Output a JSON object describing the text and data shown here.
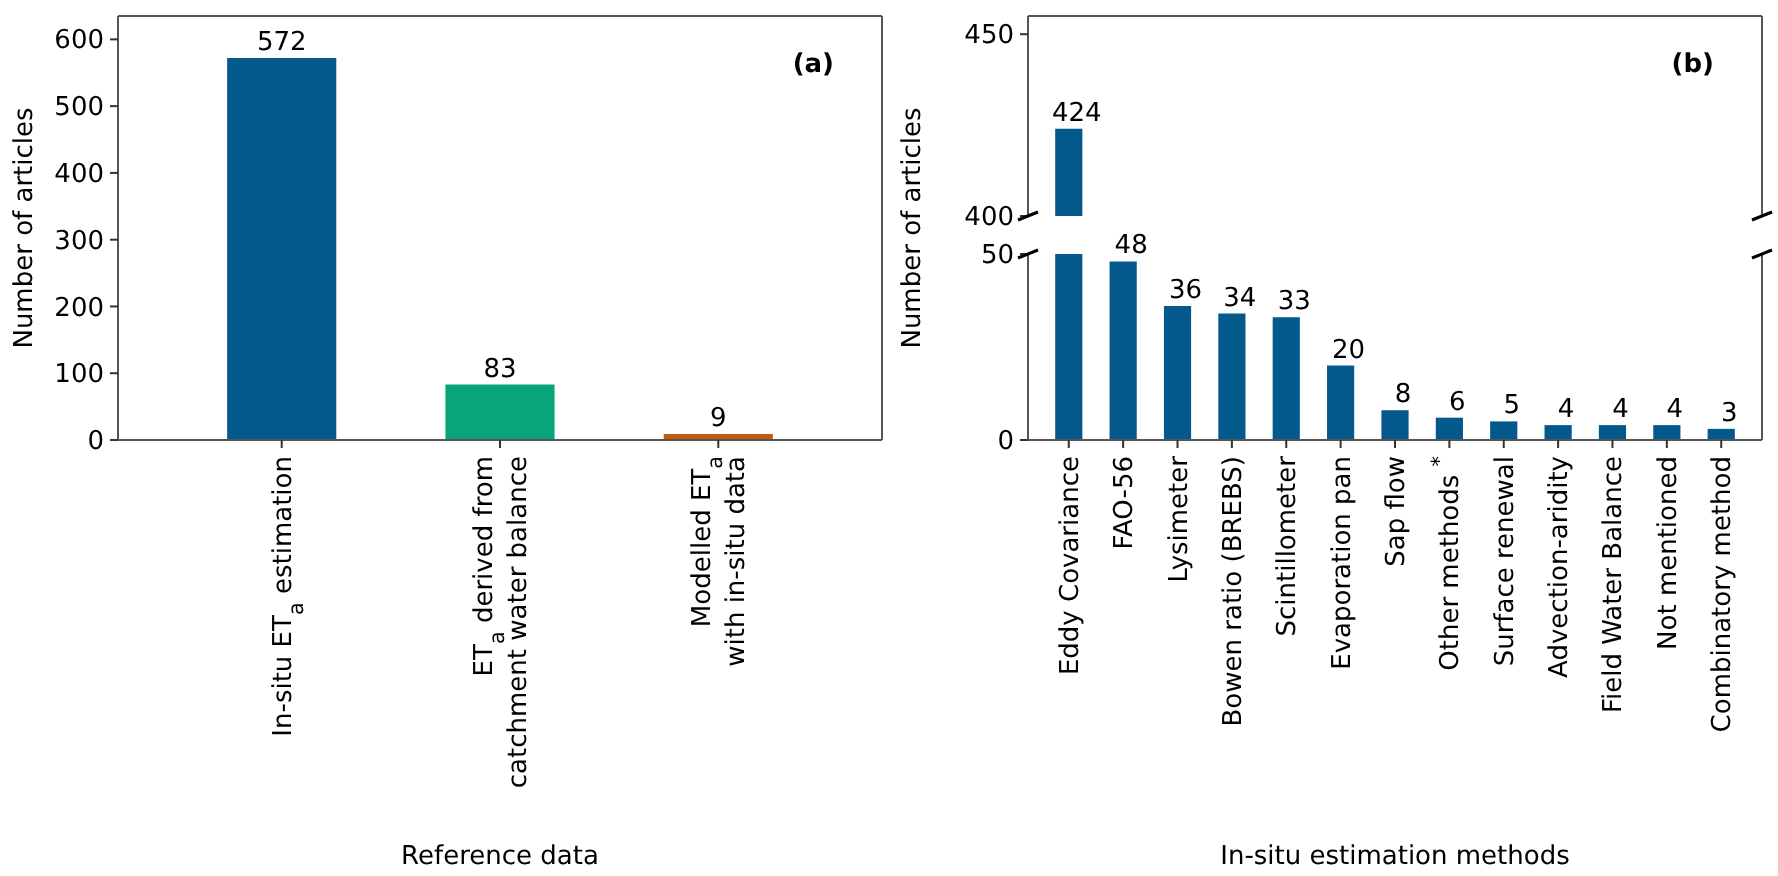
{
  "chart_data": [
    {
      "type": "bar",
      "title": "(a)",
      "xlabel": "Reference data",
      "ylabel": "Number of articles",
      "categories": [
        "In-situ ET$_{a}$ estimation",
        "ET$_{a}$ derived from\ncatchment water balance",
        "Modelled ET$_{a}$\nwith in-situ data"
      ],
      "values": [
        572,
        83,
        9
      ],
      "colors": [
        "#03588c",
        "#08a57a",
        "#c45a12"
      ],
      "ylim": [
        0,
        635
      ],
      "yticks": [
        0,
        100,
        200,
        300,
        400,
        500,
        600
      ],
      "data_labels": true
    },
    {
      "type": "bar",
      "title": "(b)",
      "categories": [
        null,
        null,
        null,
        null,
        null,
        null,
        null,
        null,
        null,
        null,
        null,
        null,
        null
      ],
      "values": [
        424,
        null,
        null,
        null,
        null,
        null,
        null,
        null,
        null,
        null,
        null,
        null,
        null
      ],
      "color": "#03588c",
      "ylim": [
        400,
        455
      ],
      "yticks": [
        400,
        450
      ],
      "value_labels": [
        "424",
        null,
        null,
        null,
        null,
        null,
        null,
        null,
        null,
        null,
        null,
        null,
        null
      ],
      "tick_labels": "y"
    },
    {
      "type": "bar",
      "xlabel": "In-situ estimation methods",
      "ylabel": "Number of articles",
      "categories": [
        "Eddy Covariance",
        "FAO-56",
        "Lysimeter",
        "Bowen ratio (BREBS)",
        "Scintillometer",
        "Evaporation pan",
        "Sap flow",
        "Other methods $^{*}$",
        "Surface renewal",
        "Advection-aridity",
        "Field Water Balance",
        "Not mentioned",
        "Combinatory method"
      ],
      "values": [
        null,
        48,
        36,
        34,
        33,
        20,
        8,
        6,
        5,
        4,
        4,
        4,
        3
      ],
      "color": "#03588c",
      "ylim": [
        0,
        50
      ],
      "yticks": [
        0,
        50
      ],
      "value_labels": [
        null,
        "48",
        "36",
        "34",
        "33",
        "20",
        "8",
        "6",
        "5",
        "4",
        "4",
        "4",
        "3"
      ]
    }
  ]
}
